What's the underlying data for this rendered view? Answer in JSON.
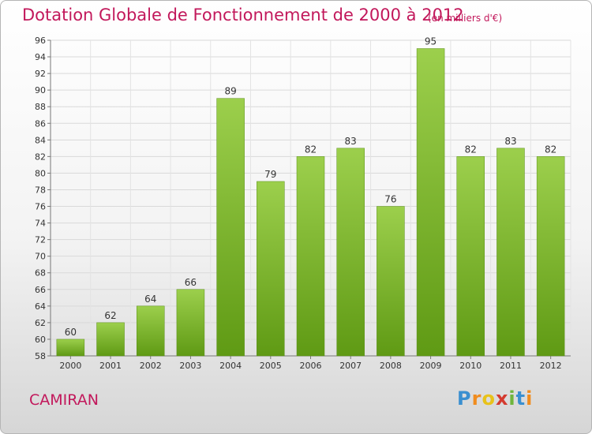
{
  "title": "Dotation Globale de Fonctionnement de 2000 à 2012",
  "subtitle": "(en milliers d'€)",
  "commune": "CAMIRAN",
  "logo": {
    "letters": [
      "P",
      "r",
      "o",
      "x",
      "i",
      "t",
      "i"
    ],
    "colors": [
      "#3a8fd0",
      "#f08c1e",
      "#e8c21a",
      "#d43a2f",
      "#6fb53c",
      "#3a8fd0",
      "#f08c1e"
    ]
  },
  "chart_data": {
    "type": "bar",
    "categories": [
      "2000",
      "2001",
      "2002",
      "2003",
      "2004",
      "2005",
      "2006",
      "2007",
      "2008",
      "2009",
      "2010",
      "2011",
      "2012"
    ],
    "values": [
      60,
      62,
      64,
      66,
      89,
      79,
      82,
      83,
      76,
      95,
      82,
      83,
      82
    ],
    "ylim": [
      58,
      96
    ],
    "yticks": [
      58,
      60,
      62,
      64,
      66,
      68,
      70,
      72,
      74,
      76,
      78,
      80,
      82,
      84,
      86,
      88,
      90,
      92,
      94,
      96
    ],
    "grid": true,
    "bar_color": "#7ab828",
    "title": "Dotation Globale de Fonctionnement de 2000 à 2012",
    "xlabel": "",
    "ylabel": ""
  }
}
